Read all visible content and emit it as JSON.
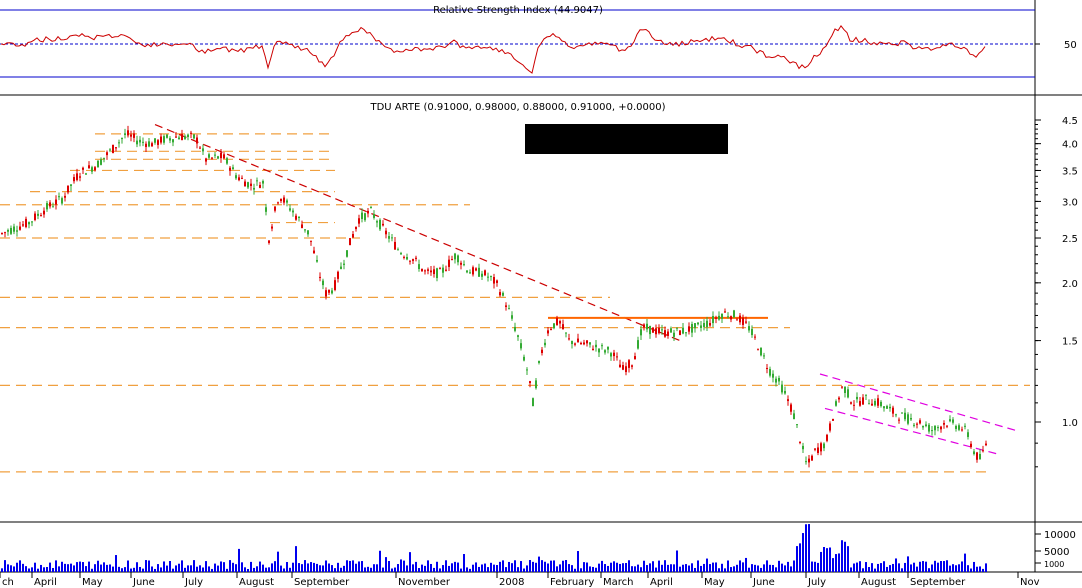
{
  "chart_data": {
    "type": "candlestick",
    "rsi": {
      "title": "Relative Strength Index (44.9047)",
      "tick_label": "50"
    },
    "price": {
      "title": "TDU ARTE (0.91000, 0.98000, 0.88000, 0.91000, +0.0000)",
      "scale": "log",
      "yticks": [
        "4.5",
        "4.0",
        "3.5",
        "3.0",
        "2.5",
        "2.0",
        "1.5",
        "1.0"
      ],
      "yticks_values": [
        4.5,
        4.0,
        3.5,
        3.0,
        2.5,
        2.0,
        1.5,
        1.0
      ]
    },
    "volume": {
      "yticks": [
        "10000",
        "5000",
        "1000"
      ]
    },
    "xticks": [
      "ch",
      "April",
      "May",
      "June",
      "July",
      "August",
      "September",
      "November",
      "2008",
      "February",
      "March",
      "April",
      "May",
      "June",
      "July",
      "August",
      "September",
      "Nov"
    ],
    "path": [
      [
        0,
        2.55
      ],
      [
        12,
        2.62
      ],
      [
        28,
        2.7
      ],
      [
        45,
        2.9
      ],
      [
        62,
        3.05
      ],
      [
        78,
        3.45
      ],
      [
        96,
        3.6
      ],
      [
        112,
        3.9
      ],
      [
        125,
        4.2
      ],
      [
        138,
        4.05
      ],
      [
        152,
        4.0
      ],
      [
        165,
        4.1
      ],
      [
        180,
        4.15
      ],
      [
        195,
        4.12
      ],
      [
        205,
        3.7
      ],
      [
        222,
        3.75
      ],
      [
        236,
        3.4
      ],
      [
        250,
        3.25
      ],
      [
        262,
        3.3
      ],
      [
        268,
        2.5
      ],
      [
        278,
        3.1
      ],
      [
        292,
        2.85
      ],
      [
        308,
        2.55
      ],
      [
        318,
        2.1
      ],
      [
        325,
        1.9
      ],
      [
        333,
        1.95
      ],
      [
        345,
        2.3
      ],
      [
        358,
        2.75
      ],
      [
        370,
        2.85
      ],
      [
        383,
        2.6
      ],
      [
        398,
        2.35
      ],
      [
        412,
        2.25
      ],
      [
        425,
        2.1
      ],
      [
        440,
        2.1
      ],
      [
        455,
        2.3
      ],
      [
        468,
        2.12
      ],
      [
        482,
        2.1
      ],
      [
        495,
        2.0
      ],
      [
        503,
        1.85
      ],
      [
        512,
        1.65
      ],
      [
        520,
        1.45
      ],
      [
        526,
        1.3
      ],
      [
        532,
        1.1
      ],
      [
        540,
        1.4
      ],
      [
        548,
        1.6
      ],
      [
        558,
        1.65
      ],
      [
        568,
        1.5
      ],
      [
        580,
        1.48
      ],
      [
        596,
        1.45
      ],
      [
        610,
        1.42
      ],
      [
        622,
        1.3
      ],
      [
        632,
        1.35
      ],
      [
        642,
        1.6
      ],
      [
        652,
        1.58
      ],
      [
        662,
        1.56
      ],
      [
        680,
        1.57
      ],
      [
        695,
        1.6
      ],
      [
        710,
        1.65
      ],
      [
        722,
        1.72
      ],
      [
        735,
        1.7
      ],
      [
        748,
        1.6
      ],
      [
        758,
        1.45
      ],
      [
        768,
        1.3
      ],
      [
        780,
        1.2
      ],
      [
        792,
        1.05
      ],
      [
        800,
        0.9
      ],
      [
        806,
        0.8
      ],
      [
        815,
        0.87
      ],
      [
        825,
        0.9
      ],
      [
        833,
        1.05
      ],
      [
        842,
        1.2
      ],
      [
        852,
        1.1
      ],
      [
        865,
        1.12
      ],
      [
        878,
        1.1
      ],
      [
        892,
        1.05
      ],
      [
        905,
        1.02
      ],
      [
        918,
        1.0
      ],
      [
        932,
        0.96
      ],
      [
        945,
        1.0
      ],
      [
        958,
        0.98
      ],
      [
        966,
        0.95
      ],
      [
        974,
        0.85
      ],
      [
        980,
        0.83
      ],
      [
        986,
        0.91
      ]
    ],
    "support_levels": [
      4.2,
      3.85,
      3.7,
      3.5,
      3.15,
      2.95,
      2.7,
      2.5,
      1.86,
      1.6,
      1.2,
      0.78
    ],
    "trendlines": [
      {
        "from": [
          155,
          4.4
        ],
        "to": [
          680,
          1.5
        ],
        "color": "#cc0000"
      },
      {
        "from": [
          548,
          1.68
        ],
        "to": [
          768,
          1.68
        ],
        "color": "#ff6600"
      },
      {
        "from": [
          820,
          1.27
        ],
        "to": [
          1015,
          0.96
        ],
        "color": "#e000e0"
      },
      {
        "from": [
          825,
          1.07
        ],
        "to": [
          1000,
          0.85
        ],
        "color": "#e000e0"
      }
    ]
  }
}
